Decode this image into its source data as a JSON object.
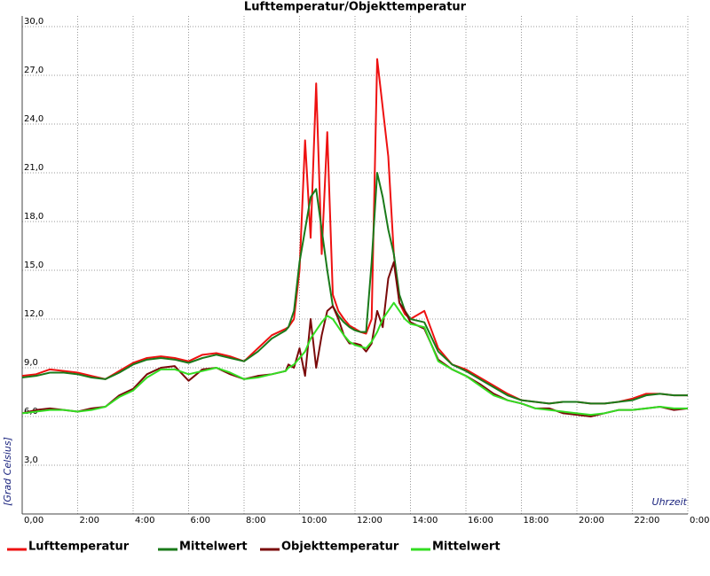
{
  "chart_data": {
    "type": "line",
    "title": "Lufttemperatur/Objekttemperatur",
    "y_label": "[Grad Celsius]",
    "x_label": "Uhrzeit",
    "x": [
      0,
      0.5,
      1,
      1.5,
      2,
      2.5,
      3,
      3.5,
      4,
      4.5,
      5,
      5.5,
      6,
      6.5,
      7,
      7.5,
      8,
      8.5,
      9,
      9.5,
      9.6,
      9.8,
      10.0,
      10.2,
      10.4,
      10.6,
      10.8,
      11.0,
      11.2,
      11.4,
      11.6,
      11.8,
      12.0,
      12.2,
      12.4,
      12.6,
      12.8,
      13.0,
      13.2,
      13.4,
      13.6,
      13.8,
      14.0,
      14.5,
      15,
      15.5,
      16,
      16.5,
      17,
      17.5,
      18,
      18.5,
      19,
      19.5,
      20,
      20.5,
      21,
      21.5,
      22,
      22.5,
      23,
      23.5,
      24
    ],
    "series": [
      {
        "name": "Lufttemperatur",
        "color": "#ee1111",
        "values": [
          8.5,
          8.6,
          8.9,
          8.8,
          8.7,
          8.5,
          8.3,
          8.8,
          9.3,
          9.6,
          9.7,
          9.6,
          9.4,
          9.8,
          9.9,
          9.7,
          9.4,
          10.2,
          11.0,
          11.4,
          11.5,
          12.0,
          15,
          23,
          17,
          26.5,
          16,
          23.5,
          13.5,
          12.5,
          12.0,
          11.6,
          11.4,
          11.2,
          11.1,
          12.0,
          28.0,
          25,
          22,
          16,
          13,
          12.3,
          12.0,
          12.5,
          10.2,
          9.2,
          8.9,
          8.4,
          7.9,
          7.4,
          7.0,
          6.9,
          6.8,
          6.9,
          6.9,
          6.8,
          6.8,
          6.9,
          7.1,
          7.4,
          7.4,
          7.3,
          7.3
        ]
      },
      {
        "name": "Mittelwert",
        "color": "#1a7a1a",
        "values": [
          8.4,
          8.5,
          8.7,
          8.7,
          8.6,
          8.4,
          8.3,
          8.7,
          9.2,
          9.5,
          9.6,
          9.5,
          9.3,
          9.6,
          9.8,
          9.6,
          9.4,
          10.0,
          10.8,
          11.3,
          11.5,
          12.5,
          15.5,
          17.5,
          19.5,
          20.0,
          17.5,
          15.0,
          12.8,
          12.2,
          11.8,
          11.5,
          11.3,
          11.2,
          11.2,
          15.5,
          21.0,
          19.5,
          17.5,
          16.0,
          13.5,
          12.5,
          12.0,
          11.8,
          10.0,
          9.2,
          8.8,
          8.3,
          7.8,
          7.3,
          7.0,
          6.9,
          6.8,
          6.9,
          6.9,
          6.8,
          6.8,
          6.9,
          7.0,
          7.3,
          7.4,
          7.3,
          7.3
        ]
      },
      {
        "name": "Objekttemperatur",
        "color": "#7a0a0a",
        "values": [
          6.2,
          6.4,
          6.5,
          6.4,
          6.3,
          6.5,
          6.6,
          7.3,
          7.7,
          8.6,
          9.0,
          9.1,
          8.2,
          8.9,
          9.0,
          8.6,
          8.3,
          8.5,
          8.6,
          8.8,
          9.2,
          9.0,
          10.2,
          8.5,
          12.0,
          9.0,
          11.0,
          12.5,
          12.8,
          12.0,
          11.0,
          10.5,
          10.5,
          10.4,
          10.0,
          10.5,
          12.5,
          11.5,
          14.5,
          15.5,
          13.0,
          12.5,
          11.8,
          11.4,
          9.5,
          8.9,
          8.5,
          8.0,
          7.4,
          7.0,
          6.8,
          6.5,
          6.5,
          6.2,
          6.1,
          6.0,
          6.2,
          6.4,
          6.4,
          6.5,
          6.6,
          6.4,
          6.5
        ]
      },
      {
        "name": "Mittelwert",
        "color": "#33dd22",
        "values": [
          6.2,
          6.3,
          6.4,
          6.4,
          6.3,
          6.4,
          6.6,
          7.2,
          7.6,
          8.4,
          8.9,
          8.9,
          8.6,
          8.8,
          9.0,
          8.7,
          8.3,
          8.4,
          8.6,
          8.8,
          9.0,
          9.2,
          9.6,
          10.0,
          10.8,
          11.3,
          11.8,
          12.2,
          12.0,
          11.5,
          11.0,
          10.6,
          10.4,
          10.3,
          10.2,
          10.6,
          11.2,
          12.0,
          12.5,
          13.0,
          12.5,
          12.0,
          11.7,
          11.5,
          9.4,
          8.9,
          8.5,
          7.9,
          7.3,
          7.0,
          6.8,
          6.5,
          6.4,
          6.3,
          6.2,
          6.1,
          6.2,
          6.4,
          6.4,
          6.5,
          6.6,
          6.5,
          6.5
        ]
      }
    ],
    "xlim": [
      0,
      24
    ],
    "xticks": [
      {
        "value": 0,
        "label": "0,00"
      },
      {
        "value": 2,
        "label": "2:00"
      },
      {
        "value": 4,
        "label": "4:00"
      },
      {
        "value": 6,
        "label": "6:00"
      },
      {
        "value": 8,
        "label": "8:00"
      },
      {
        "value": 10,
        "label": "10:00"
      },
      {
        "value": 12,
        "label": "12:00"
      },
      {
        "value": 14,
        "label": "14:00"
      },
      {
        "value": 16,
        "label": "16:00"
      },
      {
        "value": 18,
        "label": "18:00"
      },
      {
        "value": 20,
        "label": "20:00"
      },
      {
        "value": 22,
        "label": "22:00"
      },
      {
        "value": 24,
        "label": "0:00"
      }
    ],
    "ylim": [
      0,
      30
    ],
    "yticks": [
      {
        "value": 3,
        "label": "3,0"
      },
      {
        "value": 6,
        "label": "6,0"
      },
      {
        "value": 9,
        "label": "9,0"
      },
      {
        "value": 12,
        "label": "12,0"
      },
      {
        "value": 15,
        "label": "15,0"
      },
      {
        "value": 18,
        "label": "18,0"
      },
      {
        "value": 21,
        "label": "21,0"
      },
      {
        "value": 24,
        "label": "24,0"
      },
      {
        "value": 27,
        "label": "27,0"
      },
      {
        "value": 30,
        "label": "30,0"
      }
    ],
    "grid": true
  }
}
